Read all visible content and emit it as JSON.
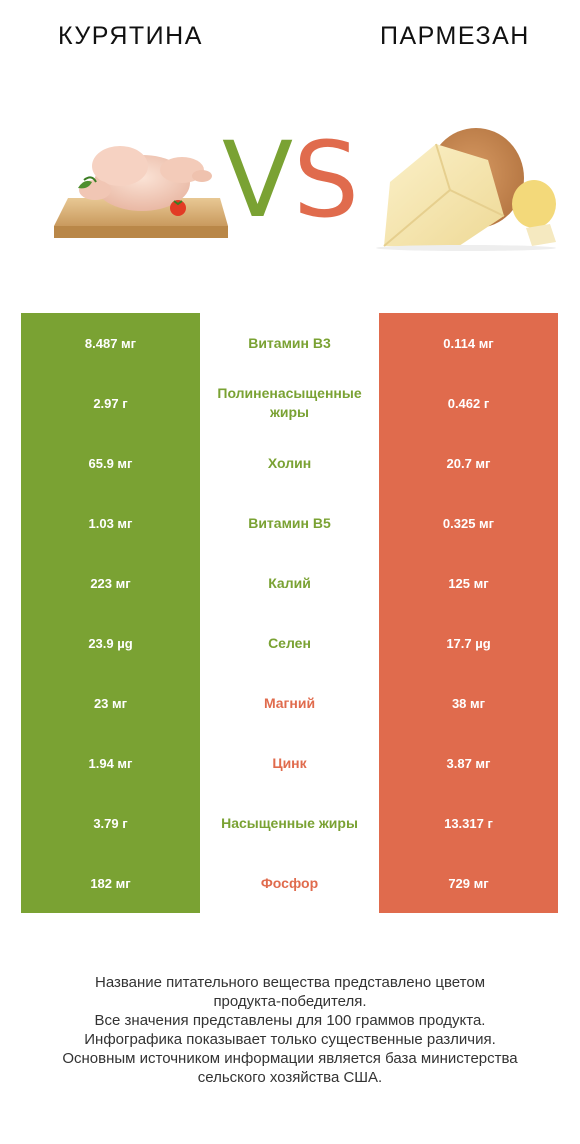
{
  "colors": {
    "left": "#7aa233",
    "right": "#e06b4d"
  },
  "header": {
    "left_title": "КУРЯТИНА",
    "right_title": "ПАРМЕЗАН",
    "vs_v": "V",
    "vs_s": "S"
  },
  "images": {
    "left": "chicken-illustration",
    "right": "parmesan-illustration"
  },
  "chart_data": {
    "type": "table",
    "columns": [
      "КУРЯТИНА",
      "",
      "ПАРМЕЗАН"
    ],
    "rows": [
      {
        "left": "8.487 мг",
        "nutrient": "Витамин B3",
        "right": "0.114 мг",
        "winner": "left"
      },
      {
        "left": "2.97 г",
        "nutrient": "Полиненасыщенные жиры",
        "right": "0.462 г",
        "winner": "left"
      },
      {
        "left": "65.9 мг",
        "nutrient": "Холин",
        "right": "20.7 мг",
        "winner": "left"
      },
      {
        "left": "1.03 мг",
        "nutrient": "Витамин B5",
        "right": "0.325 мг",
        "winner": "left"
      },
      {
        "left": "223 мг",
        "nutrient": "Калий",
        "right": "125 мг",
        "winner": "left"
      },
      {
        "left": "23.9 µg",
        "nutrient": "Селен",
        "right": "17.7 µg",
        "winner": "left"
      },
      {
        "left": "23 мг",
        "nutrient": "Магний",
        "right": "38 мг",
        "winner": "right"
      },
      {
        "left": "1.94 мг",
        "nutrient": "Цинк",
        "right": "3.87 мг",
        "winner": "right"
      },
      {
        "left": "3.79 г",
        "nutrient": "Насыщенные жиры",
        "right": "13.317 г",
        "winner": "left"
      },
      {
        "left": "182 мг",
        "nutrient": "Фосфор",
        "right": "729 мг",
        "winner": "right"
      }
    ]
  },
  "footer": {
    "line1": "Название питательного вещества представлено цветом",
    "line2": "продукта-победителя.",
    "line3": "Все значения представлены для 100 граммов продукта.",
    "line4": "Инфографика показывает только существенные различия.",
    "line5": "Основным источником информации является база министерства",
    "line6": "сельского хозяйства США."
  }
}
